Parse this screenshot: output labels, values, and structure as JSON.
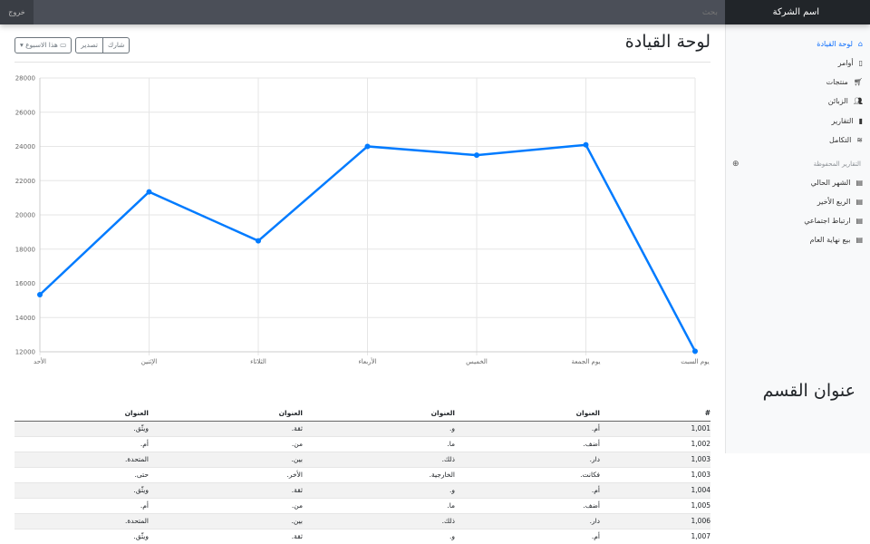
{
  "topbar": {
    "brand": "اسم الشركة",
    "search_placeholder": "بحث",
    "signout": "خروج"
  },
  "sidebar": {
    "items": [
      {
        "label": "لوحة القيادة",
        "icon": "home-icon",
        "active": true
      },
      {
        "label": "أوامر",
        "icon": "file-icon"
      },
      {
        "label": "منتجات",
        "icon": "cart-icon"
      },
      {
        "label": "الزبائن",
        "icon": "users-icon"
      },
      {
        "label": "التقارير",
        "icon": "bar-chart-icon"
      },
      {
        "label": "التكامل",
        "icon": "layers-icon"
      }
    ],
    "saved_heading": "التقارير المحفوظة",
    "saved": [
      {
        "label": "الشهر الحالي"
      },
      {
        "label": "الربع الأخير"
      },
      {
        "label": "ارتباط اجتماعي"
      },
      {
        "label": "بيع نهاية العام"
      }
    ]
  },
  "main": {
    "title": "لوحة القيادة",
    "share": "شارك",
    "export": "تصدير",
    "period": "هذا الاسبوع",
    "section_title": "عنوان القسم"
  },
  "chart_data": {
    "type": "line",
    "categories": [
      "الأحد",
      "الإثنين",
      "الثلاثاء",
      "الأربعاء",
      "الخميس",
      "يوم الجمعة",
      "يوم السبت"
    ],
    "values": [
      15339,
      21345,
      18483,
      24003,
      23489,
      24092,
      12034
    ],
    "ylim": [
      12000,
      28000
    ],
    "yticks": [
      12000,
      14000,
      16000,
      18000,
      20000,
      22000,
      24000,
      26000,
      28000
    ],
    "grid": true,
    "color": "#007bff"
  },
  "table": {
    "headers": [
      "#",
      "العنوان",
      "العنوان",
      "العنوان",
      "العنوان"
    ],
    "rows": [
      [
        "1,001",
        "أم.",
        "و.",
        "ثقة.",
        "ويثّق."
      ],
      [
        "1,002",
        "أضف.",
        "ما.",
        "من.",
        "أم."
      ],
      [
        "1,003",
        "دار.",
        "ذلك.",
        "بين.",
        "المتحدة."
      ],
      [
        "1,003",
        "فكانت.",
        "الخارجية.",
        "الأخر.",
        "حتى."
      ],
      [
        "1,004",
        "أم.",
        "و.",
        "ثقة.",
        "ويثّق."
      ],
      [
        "1,005",
        "أضف.",
        "ما.",
        "من.",
        "أم."
      ],
      [
        "1,006",
        "دار.",
        "ذلك.",
        "بين.",
        "المتحدة."
      ],
      [
        "1,007",
        "أم.",
        "و.",
        "ثقة.",
        "ويثّق."
      ]
    ]
  }
}
